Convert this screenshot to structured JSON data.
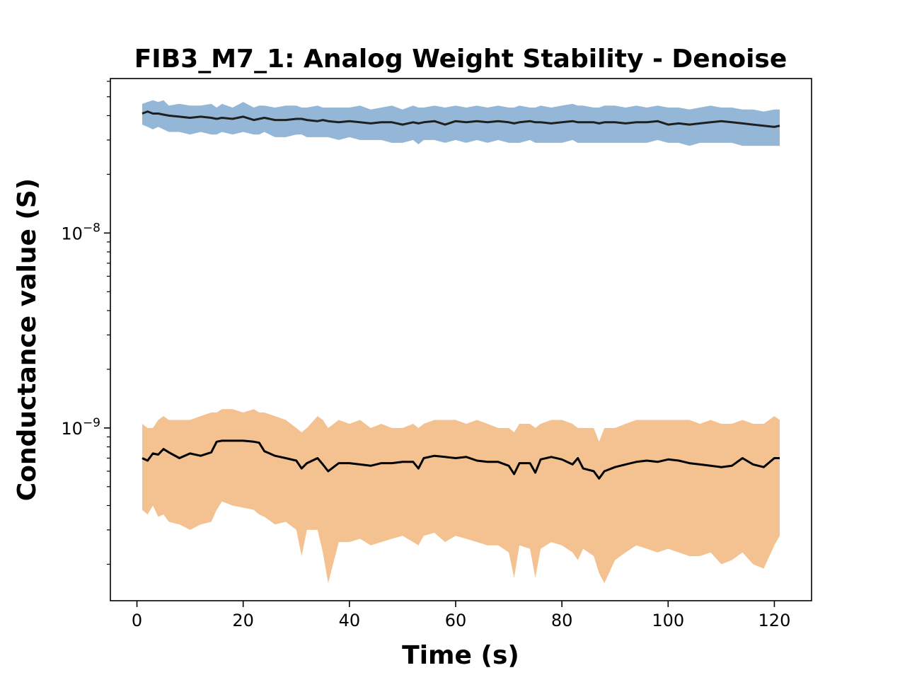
{
  "chart_data": {
    "type": "area",
    "title": "FIB3_M7_1: Analog Weight Stability - Denoise",
    "xlabel": "Time (s)",
    "ylabel": "Conductance value (S)",
    "yscale": "log",
    "xlim": [
      -5,
      127
    ],
    "ylim": [
      1.3e-10,
      6.2e-08
    ],
    "grid": false,
    "x_ticks": [
      0,
      20,
      40,
      60,
      80,
      100,
      120
    ],
    "x_tick_labels": [
      "0",
      "20",
      "40",
      "60",
      "80",
      "100",
      "120"
    ],
    "y_ticks": [
      1e-09,
      1e-08
    ],
    "y_tick_labels": [
      {
        "base": "10",
        "exp": "−9"
      },
      {
        "base": "10",
        "exp": "−8"
      }
    ],
    "x": [
      1,
      2,
      3,
      4,
      5,
      6,
      8,
      10,
      12,
      14,
      15,
      16,
      18,
      20,
      22,
      23,
      24,
      26,
      28,
      30,
      31,
      32,
      34,
      35,
      36,
      38,
      40,
      42,
      44,
      46,
      48,
      50,
      52,
      53,
      54,
      56,
      58,
      60,
      62,
      64,
      66,
      68,
      70,
      71,
      72,
      74,
      75,
      76,
      78,
      80,
      82,
      83,
      84,
      86,
      87,
      88,
      90,
      92,
      94,
      96,
      98,
      100,
      102,
      104,
      106,
      108,
      110,
      112,
      114,
      116,
      118,
      120,
      121
    ],
    "series": [
      {
        "color": "#1f1f1f",
        "band_color": "#95b7d7",
        "mean": [
          4.1e-08,
          4.2e-08,
          4.1e-08,
          4.1e-08,
          4.05e-08,
          4e-08,
          3.95e-08,
          3.9e-08,
          3.95e-08,
          3.9e-08,
          3.85e-08,
          3.9e-08,
          3.85e-08,
          3.95e-08,
          3.8e-08,
          3.85e-08,
          3.9e-08,
          3.8e-08,
          3.8e-08,
          3.85e-08,
          3.85e-08,
          3.8e-08,
          3.75e-08,
          3.8e-08,
          3.75e-08,
          3.7e-08,
          3.75e-08,
          3.7e-08,
          3.65e-08,
          3.7e-08,
          3.7e-08,
          3.6e-08,
          3.7e-08,
          3.65e-08,
          3.7e-08,
          3.75e-08,
          3.6e-08,
          3.75e-08,
          3.7e-08,
          3.75e-08,
          3.7e-08,
          3.75e-08,
          3.7e-08,
          3.65e-08,
          3.7e-08,
          3.75e-08,
          3.7e-08,
          3.7e-08,
          3.65e-08,
          3.7e-08,
          3.75e-08,
          3.7e-08,
          3.7e-08,
          3.7e-08,
          3.65e-08,
          3.7e-08,
          3.7e-08,
          3.65e-08,
          3.7e-08,
          3.7e-08,
          3.75e-08,
          3.6e-08,
          3.65e-08,
          3.6e-08,
          3.65e-08,
          3.7e-08,
          3.75e-08,
          3.7e-08,
          3.65e-08,
          3.6e-08,
          3.55e-08,
          3.5e-08,
          3.55e-08
        ],
        "upper": [
          4.6e-08,
          4.7e-08,
          4.8e-08,
          4.7e-08,
          4.8e-08,
          4.5e-08,
          4.6e-08,
          4.5e-08,
          4.5e-08,
          4.6e-08,
          4.4e-08,
          4.6e-08,
          4.4e-08,
          4.7e-08,
          4.4e-08,
          4.5e-08,
          4.5e-08,
          4.4e-08,
          4.5e-08,
          4.5e-08,
          4.4e-08,
          4.4e-08,
          4.5e-08,
          4.4e-08,
          4.4e-08,
          4.4e-08,
          4.4e-08,
          4.5e-08,
          4.3e-08,
          4.4e-08,
          4.5e-08,
          4.3e-08,
          4.5e-08,
          4.4e-08,
          4.4e-08,
          4.5e-08,
          4.4e-08,
          4.5e-08,
          4.4e-08,
          4.5e-08,
          4.4e-08,
          4.5e-08,
          4.4e-08,
          4.4e-08,
          4.5e-08,
          4.4e-08,
          4.4e-08,
          4.5e-08,
          4.4e-08,
          4.5e-08,
          4.6e-08,
          4.5e-08,
          4.5e-08,
          4.4e-08,
          4.4e-08,
          4.5e-08,
          4.5e-08,
          4.4e-08,
          4.5e-08,
          4.4e-08,
          4.5e-08,
          4.4e-08,
          4.4e-08,
          4.3e-08,
          4.4e-08,
          4.5e-08,
          4.4e-08,
          4.4e-08,
          4.3e-08,
          4.3e-08,
          4.2e-08,
          4.3e-08,
          4.3e-08
        ],
        "lower": [
          3.6e-08,
          3.5e-08,
          3.4e-08,
          3.5e-08,
          3.4e-08,
          3.3e-08,
          3.3e-08,
          3.2e-08,
          3.3e-08,
          3.2e-08,
          3.2e-08,
          3.3e-08,
          3.2e-08,
          3.3e-08,
          3.2e-08,
          3.2e-08,
          3.3e-08,
          3.1e-08,
          3.1e-08,
          3.2e-08,
          3.2e-08,
          3.1e-08,
          3.1e-08,
          3.1e-08,
          3.1e-08,
          3e-08,
          3.1e-08,
          3e-08,
          3e-08,
          3e-08,
          2.9e-08,
          2.9e-08,
          3e-08,
          2.85e-08,
          3e-08,
          3e-08,
          2.9e-08,
          3e-08,
          2.9e-08,
          3e-08,
          2.9e-08,
          3e-08,
          2.9e-08,
          2.9e-08,
          2.9e-08,
          3e-08,
          2.9e-08,
          2.9e-08,
          2.9e-08,
          2.9e-08,
          3e-08,
          2.9e-08,
          2.9e-08,
          2.9e-08,
          2.9e-08,
          2.9e-08,
          2.9e-08,
          2.9e-08,
          2.9e-08,
          2.9e-08,
          3e-08,
          2.9e-08,
          2.9e-08,
          2.8e-08,
          2.9e-08,
          2.9e-08,
          2.9e-08,
          2.9e-08,
          2.8e-08,
          2.8e-08,
          2.8e-08,
          2.8e-08,
          2.8e-08
        ]
      },
      {
        "color": "#000000",
        "band_color": "#f4c290",
        "mean": [
          7e-10,
          6.8e-10,
          7.4e-10,
          7.3e-10,
          7.8e-10,
          7.5e-10,
          7e-10,
          7.4e-10,
          7.2e-10,
          7.5e-10,
          8.5e-10,
          8.6e-10,
          8.6e-10,
          8.6e-10,
          8.5e-10,
          8.4e-10,
          7.6e-10,
          7.2e-10,
          7e-10,
          6.8e-10,
          6.2e-10,
          6.6e-10,
          7e-10,
          6.5e-10,
          6e-10,
          6.6e-10,
          6.6e-10,
          6.5e-10,
          6.4e-10,
          6.6e-10,
          6.6e-10,
          6.7e-10,
          6.7e-10,
          6.2e-10,
          7e-10,
          7.2e-10,
          7.1e-10,
          7e-10,
          7.1e-10,
          6.8e-10,
          6.7e-10,
          6.7e-10,
          6.4e-10,
          5.8e-10,
          6.6e-10,
          6.6e-10,
          5.9e-10,
          6.9e-10,
          7.1e-10,
          6.9e-10,
          6.5e-10,
          7e-10,
          6.2e-10,
          6e-10,
          5.5e-10,
          6e-10,
          6.3e-10,
          6.5e-10,
          6.7e-10,
          6.8e-10,
          6.7e-10,
          6.9e-10,
          6.8e-10,
          6.6e-10,
          6.5e-10,
          6.4e-10,
          6.3e-10,
          6.4e-10,
          7e-10,
          6.5e-10,
          6.3e-10,
          7e-10,
          7e-10
        ],
        "upper": [
          1.05e-09,
          1e-09,
          1e-09,
          1.1e-09,
          1.15e-09,
          1.1e-09,
          1.1e-09,
          1.1e-09,
          1.15e-09,
          1.2e-09,
          1.2e-09,
          1.25e-09,
          1.25e-09,
          1.2e-09,
          1.25e-09,
          1.2e-09,
          1.2e-09,
          1.15e-09,
          1.1e-09,
          1e-09,
          9.5e-10,
          1e-09,
          1.15e-09,
          1.1e-09,
          1e-09,
          1.1e-09,
          1.05e-09,
          1.1e-09,
          1e-09,
          1.05e-09,
          1e-09,
          1e-09,
          1.05e-09,
          1e-09,
          1.05e-09,
          1.1e-09,
          1.1e-09,
          1.1e-09,
          1.05e-09,
          1.1e-09,
          1.05e-09,
          1e-09,
          1e-09,
          9.5e-10,
          1.05e-09,
          1.05e-09,
          1e-09,
          1.05e-09,
          1.1e-09,
          1.1e-09,
          1.05e-09,
          1e-09,
          1e-09,
          1e-09,
          8.5e-10,
          1e-09,
          1e-09,
          1.05e-09,
          1.1e-09,
          1.1e-09,
          1.1e-09,
          1.1e-09,
          1.1e-09,
          1.1e-09,
          1.05e-09,
          1.1e-09,
          1.05e-09,
          1.05e-09,
          1.1e-09,
          1.05e-09,
          1.05e-09,
          1.15e-09,
          1.1e-09
        ],
        "lower": [
          3.8e-10,
          3.6e-10,
          4e-10,
          3.5e-10,
          3.6e-10,
          3.3e-10,
          3.2e-10,
          3e-10,
          3.2e-10,
          3.3e-10,
          3.8e-10,
          4.2e-10,
          4e-10,
          3.9e-10,
          3.8e-10,
          3.6e-10,
          3.5e-10,
          3.2e-10,
          3.3e-10,
          3e-10,
          2.2e-10,
          3e-10,
          3e-10,
          2.3e-10,
          1.6e-10,
          2.6e-10,
          2.6e-10,
          2.7e-10,
          2.5e-10,
          2.6e-10,
          2.7e-10,
          2.8e-10,
          2.6e-10,
          2.5e-10,
          2.8e-10,
          2.9e-10,
          2.6e-10,
          2.8e-10,
          2.7e-10,
          2.6e-10,
          2.5e-10,
          2.5e-10,
          2.3e-10,
          1.7e-10,
          2.5e-10,
          2.4e-10,
          1.7e-10,
          2.4e-10,
          2.6e-10,
          2.5e-10,
          2.3e-10,
          2.1e-10,
          2.4e-10,
          2.2e-10,
          1.8e-10,
          1.6e-10,
          2.1e-10,
          2.3e-10,
          2.5e-10,
          2.4e-10,
          2.3e-10,
          2.4e-10,
          2.3e-10,
          2.2e-10,
          2.2e-10,
          2.3e-10,
          2e-10,
          2.1e-10,
          2.3e-10,
          2e-10,
          1.9e-10,
          2.5e-10,
          2.8e-10
        ]
      }
    ]
  }
}
